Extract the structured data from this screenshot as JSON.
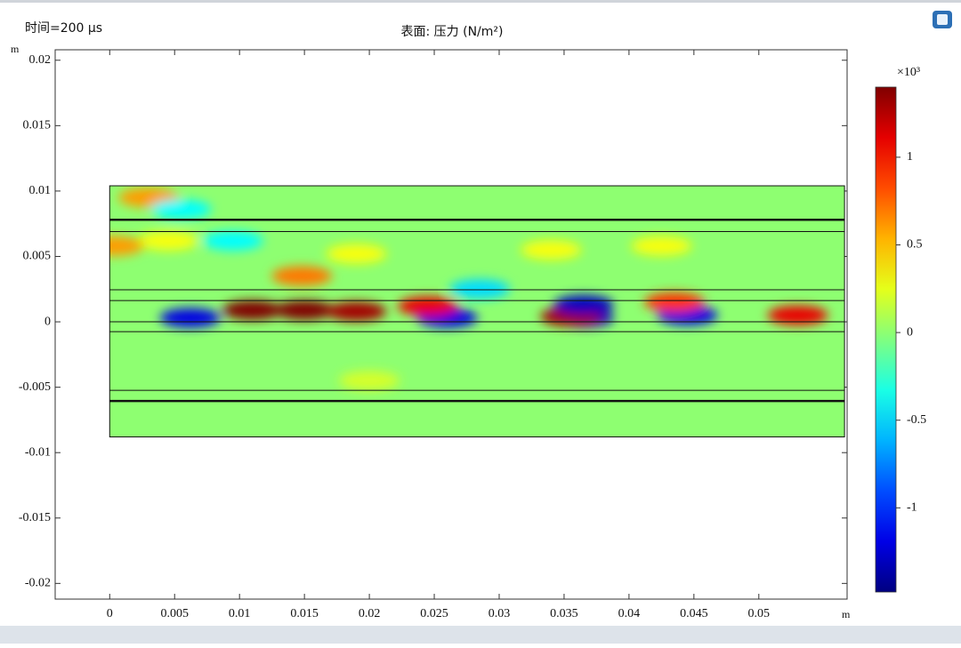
{
  "chart_data": {
    "type": "surface",
    "time_label": "时间=200 µs",
    "title": "表面: 压力 (N/m²)",
    "x_unit": "m",
    "y_unit": "m",
    "xlim": [
      -0.0042,
      0.0568
    ],
    "ylim": [
      -0.0212,
      0.0208
    ],
    "xticks": [
      0,
      0.005,
      0.01,
      0.015,
      0.02,
      0.025,
      0.03,
      0.035,
      0.04,
      0.045,
      0.05
    ],
    "yticks": [
      0.02,
      0.015,
      0.01,
      0.005,
      0,
      -0.005,
      -0.01,
      -0.015,
      -0.02
    ],
    "domain": {
      "xlim": [
        0,
        0.0566
      ],
      "ylim": [
        -0.0088,
        0.0104
      ]
    },
    "layer_lines": [
      0.0078,
      0.0069,
      0.00245,
      0.00163,
      0,
      -0.00075,
      -0.00524,
      -0.00605
    ],
    "colorbar": {
      "label": "×10³",
      "lim": [
        -1.48,
        1.4
      ],
      "ticks": [
        1,
        0.5,
        0,
        -0.5,
        -1
      ]
    },
    "field": [
      {
        "x": 0.011,
        "y": 0.0009,
        "value": 1.4
      },
      {
        "x": 0.015,
        "y": 0.0009,
        "value": 1.4
      },
      {
        "x": 0.019,
        "y": 0.0008,
        "value": 1.3
      },
      {
        "x": 0.0148,
        "y": 0.0035,
        "value": 0.7
      },
      {
        "x": 0.0062,
        "y": 0.0003,
        "value": -1.2
      },
      {
        "x": 0.026,
        "y": 0.0003,
        "value": -1.2
      },
      {
        "x": 0.0365,
        "y": 0.0003,
        "value": -1.3
      },
      {
        "x": 0.0445,
        "y": 0.0005,
        "value": -1.2
      },
      {
        "x": 0.0245,
        "y": 0.0012,
        "value": 1.1
      },
      {
        "x": 0.0355,
        "y": 0.0004,
        "value": 1.3
      },
      {
        "x": 0.053,
        "y": 0.0005,
        "value": 1.1
      },
      {
        "x": 0.0435,
        "y": 0.0015,
        "value": 0.9
      },
      {
        "x": 0.0365,
        "y": 0.0013,
        "value": -1.3
      },
      {
        "x": 0.0095,
        "y": 0.0062,
        "value": -0.4
      },
      {
        "x": 0.0285,
        "y": 0.0025,
        "value": -0.5
      },
      {
        "x": 0.0045,
        "y": 0.0062,
        "value": 0.3
      },
      {
        "x": 0.019,
        "y": 0.0052,
        "value": 0.3
      },
      {
        "x": 0.034,
        "y": 0.0055,
        "value": 0.3
      },
      {
        "x": 0.0425,
        "y": 0.0058,
        "value": 0.3
      },
      {
        "x": 0.02,
        "y": -0.0045,
        "value": 0.2
      },
      {
        "x": 0.003,
        "y": 0.0095,
        "value": 0.6
      },
      {
        "x": 0.0055,
        "y": 0.0086,
        "value": -0.4
      },
      {
        "x": 0.0003,
        "y": 0.0058,
        "value": 0.6
      }
    ]
  }
}
